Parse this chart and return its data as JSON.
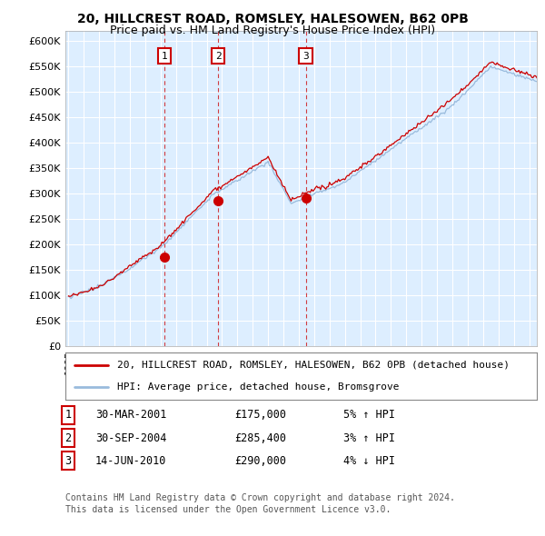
{
  "title1": "20, HILLCREST ROAD, ROMSLEY, HALESOWEN, B62 0PB",
  "title2": "Price paid vs. HM Land Registry's House Price Index (HPI)",
  "background_color": "#ffffff",
  "plot_bg_color": "#ddeeff",
  "grid_color": "#ffffff",
  "sale_color": "#cc0000",
  "hpi_color": "#99bbdd",
  "sale_points": [
    {
      "date": 2001.24,
      "price": 175000,
      "label": "1"
    },
    {
      "date": 2004.75,
      "price": 285400,
      "label": "2"
    },
    {
      "date": 2010.45,
      "price": 290000,
      "label": "3"
    }
  ],
  "vline_dates": [
    2001.24,
    2004.75,
    2010.45
  ],
  "legend_entries": [
    "20, HILLCREST ROAD, ROMSLEY, HALESOWEN, B62 0PB (detached house)",
    "HPI: Average price, detached house, Bromsgrove"
  ],
  "table_rows": [
    [
      "1",
      "30-MAR-2001",
      "£175,000",
      "5% ↑ HPI"
    ],
    [
      "2",
      "30-SEP-2004",
      "£285,400",
      "3% ↑ HPI"
    ],
    [
      "3",
      "14-JUN-2010",
      "£290,000",
      "4% ↓ HPI"
    ]
  ],
  "footnote1": "Contains HM Land Registry data © Crown copyright and database right 2024.",
  "footnote2": "This data is licensed under the Open Government Licence v3.0.",
  "ylim": [
    0,
    620000
  ],
  "yticks": [
    0,
    50000,
    100000,
    150000,
    200000,
    250000,
    300000,
    350000,
    400000,
    450000,
    500000,
    550000,
    600000
  ],
  "xlim_start": 1994.8,
  "xlim_end": 2025.5
}
